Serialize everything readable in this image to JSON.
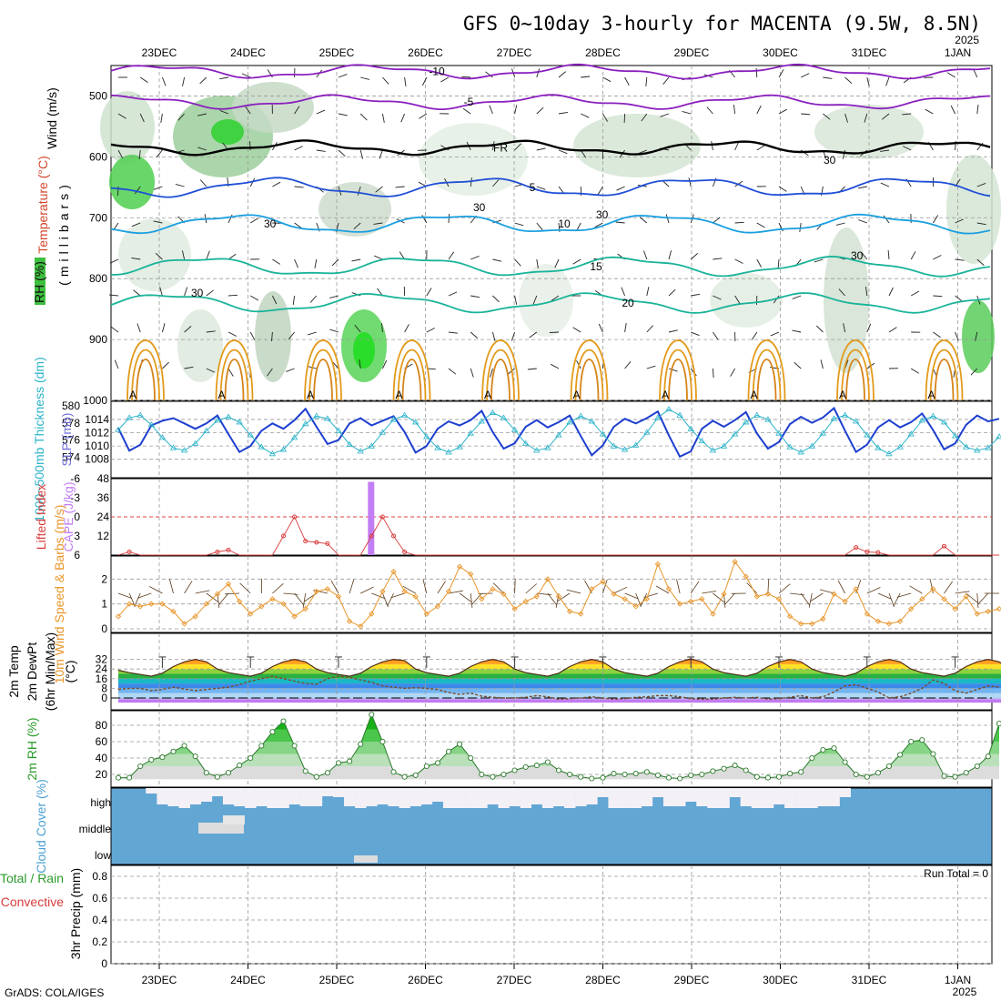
{
  "header": {
    "title": "GFS 0~10day 3-hourly for MACENTA (9.5W, 8.5N)",
    "year_top": "2025",
    "footer": "GrADS: COLA/IGES"
  },
  "axis": {
    "days": [
      "23DEC",
      "24DEC",
      "25DEC",
      "26DEC",
      "27DEC",
      "28DEC",
      "29DEC",
      "30DEC",
      "31DEC",
      "1JAN"
    ],
    "year_bottom": "2025"
  },
  "colors": {
    "wind_purple": "#8a1fbf",
    "freezing": "#000000",
    "t_blue": "#1f4fd6",
    "t_cyan": "#1a9fe0",
    "t_teal": "#19b39a",
    "t_orange": "#e39a1a",
    "slp": "#1e3fcf",
    "thick": "#2bb3c9",
    "cape": "#c27ef5",
    "li": "#d83c3c",
    "wind10": "#e8952a",
    "rh": "#2a9a2a",
    "cloud": "#62a6d4"
  },
  "chart_data": [
    {
      "type": "heatmap",
      "panel": "upper-air",
      "ylabel": "(millibars)",
      "side_labels": [
        "Wind (m/s)",
        "Temperature (°C)",
        "RH (%)"
      ],
      "ylim": [
        1000,
        450
      ],
      "yticks": [
        500,
        600,
        700,
        800,
        900,
        1000
      ],
      "isotherms": [
        {
          "label": "-10",
          "p": 460
        },
        {
          "label": "-5",
          "p": 510
        },
        {
          "label": "FR",
          "p": 585
        },
        {
          "label": "5",
          "p": 650
        },
        {
          "label": "10",
          "p": 710
        },
        {
          "label": "15",
          "p": 780
        },
        {
          "label": "20",
          "p": 840
        }
      ],
      "rh_labels": [
        "30",
        "30",
        "30",
        "30",
        "30",
        "30"
      ]
    },
    {
      "type": "line",
      "panel": "pressure",
      "ylabels": [
        "1000~500mb Thickness (dm)",
        "SLP (mb)"
      ],
      "thickness_ticks": [
        574,
        576,
        578,
        580
      ],
      "slp_ticks": [
        1008,
        1010,
        1012,
        1014
      ],
      "series": [
        {
          "name": "SLP (mb)",
          "values": [
            1012.7,
            1009.3,
            1010.2,
            1013.1,
            1013.8,
            1014.2,
            1013.4,
            1012.6,
            1013.4,
            1014.6,
            1011.8,
            1009.1,
            1010,
            1012.3,
            1013.4,
            1012.6,
            1013.9,
            1015.6,
            1012.9,
            1010.3,
            1010.9,
            1013.4,
            1014.2,
            1013.1,
            1013.8,
            1014.5,
            1012.1,
            1009,
            1010,
            1012.6,
            1013.7,
            1013.1,
            1013.9,
            1015.3,
            1012.1,
            1009.6,
            1010.4,
            1012.9,
            1013.9,
            1012.8,
            1013.6,
            1014.6,
            1011.5,
            1008.6,
            1010.1,
            1012.9,
            1014.1,
            1013.4,
            1014.2,
            1015.2,
            1011.6,
            1008.4,
            1009.2,
            1012.6,
            1013.8,
            1012.9,
            1013.9,
            1015.1,
            1011.9,
            1009.6,
            1010.6,
            1013.3,
            1014.4,
            1013.5,
            1014.3,
            1015.7,
            1012.3,
            1009.1,
            1010.2,
            1012.8,
            1013.9,
            1012.8,
            1013.6,
            1014.9,
            1012.4,
            1009.5,
            1010.4,
            1013.2,
            1014.6,
            1013.7,
            1014.1
          ]
        },
        {
          "name": "1000~500mb Thickness (dm)",
          "values": [
            577.2,
            578.6,
            578.9,
            577.8,
            576.3,
            575.1,
            574.8,
            575.6,
            577.1,
            578.3,
            578.7,
            578.1,
            576.6,
            575.2,
            574.4,
            574.9,
            576.3,
            577.9,
            578.8,
            578.5,
            577.1,
            575.5,
            574.7,
            575.3,
            576.9,
            578.4,
            578.9,
            578.1,
            576.4,
            575.1,
            574.6,
            575.2,
            576.8,
            578.2,
            579.2,
            578.6,
            577.2,
            575.6,
            574.8,
            575.1,
            576.6,
            578.1,
            578.8,
            578.2,
            576.7,
            575.3,
            574.9,
            575.4,
            576.9,
            578.6,
            579.6,
            578.9,
            577.3,
            575.9,
            574.8,
            575.3,
            576.7,
            578.1,
            578.9,
            578.4,
            576.8,
            575.2,
            574.6,
            575.3,
            576.8,
            578.5,
            578.9,
            578.2,
            576.6,
            575.1,
            574.4,
            575.2,
            576.7,
            578.3,
            578.8,
            578.1,
            576.5,
            575.2,
            574.8,
            575.1,
            576.4
          ]
        }
      ]
    },
    {
      "type": "bar",
      "panel": "instability",
      "ylabels": [
        "Lifted Index",
        "CAPE (J/kg)"
      ],
      "li_ticks": [
        "6",
        "3",
        "0",
        "-3",
        "-6"
      ],
      "cape_ticks": [
        12,
        24,
        36,
        48
      ],
      "cape_bars": [
        {
          "i": 23,
          "value": 46
        }
      ],
      "series": [
        {
          "name": "Lifted Index",
          "values": [
            6,
            5.5,
            6,
            6,
            6,
            6,
            6,
            6,
            6,
            5.5,
            5.2,
            6,
            6,
            6,
            6,
            3,
            0,
            3.8,
            4,
            4.2,
            6,
            6,
            6,
            3,
            0,
            3,
            5.5,
            6,
            6,
            6,
            6,
            6,
            6,
            6,
            6,
            6,
            6,
            6,
            6,
            6,
            6,
            6,
            6,
            6,
            6,
            6,
            6,
            6,
            6,
            6,
            6,
            6,
            6,
            6,
            6,
            6,
            6,
            6,
            6,
            6,
            6,
            6,
            6,
            6,
            6,
            6,
            6,
            4.8,
            5.5,
            5.6,
            6,
            6,
            6,
            6,
            6,
            4.6,
            6,
            6,
            6,
            6,
            6
          ]
        }
      ]
    },
    {
      "type": "line",
      "panel": "wind10m",
      "ylabel": "10m Wind Speed & Barbs (m/s)",
      "yticks": [
        0,
        1,
        2
      ],
      "series": [
        {
          "name": "10m Wind Speed",
          "values": [
            0.5,
            1,
            0.9,
            1,
            1,
            0.7,
            0.2,
            0.5,
            1,
            1.4,
            1.8,
            1.1,
            0.6,
            0.9,
            1.2,
            1,
            0.5,
            0.8,
            1.5,
            1.6,
            1.3,
            0.3,
            0.1,
            0.6,
            1.5,
            2.3,
            1.5,
            1.3,
            0.6,
            0.9,
            1.5,
            2.5,
            2.2,
            1.2,
            1.6,
            1.4,
            0.8,
            1.1,
            1.3,
            2,
            1.3,
            0.7,
            0.6,
            1.6,
            1.9,
            1.4,
            1.2,
            0.9,
            1.2,
            2.6,
            1.6,
            1,
            1.1,
            1.2,
            0.6,
            1.4,
            2.7,
            2.1,
            1.3,
            1.4,
            1.2,
            0.5,
            0.2,
            0.2,
            0.4,
            1.4,
            1.1,
            1.6,
            0.6,
            0.3,
            0.2,
            0.3,
            0.8,
            1.2,
            1.6,
            1.2,
            0.8,
            1.3,
            0.6,
            0.7,
            0.8
          ]
        }
      ]
    },
    {
      "type": "area",
      "panel": "temperature",
      "ylabels": [
        "2m Temp",
        "2m DewPt",
        "(6hr Min/Max)",
        "(°C)"
      ],
      "yticks": [
        0,
        8,
        16,
        24,
        32
      ],
      "series": [
        {
          "name": "2m Temp",
          "values": [
            23,
            21,
            19.5,
            18,
            20.5,
            26,
            30,
            32,
            30,
            24,
            21,
            19.5,
            18,
            20.5,
            26,
            30,
            32,
            30,
            24,
            21,
            19.5,
            18,
            20.5,
            26,
            30,
            32,
            31,
            24,
            21,
            19.5,
            18,
            20.5,
            26,
            30,
            32,
            30,
            24,
            21,
            19.5,
            18,
            20.5,
            26,
            30,
            32,
            30,
            24,
            21,
            19.5,
            18,
            20.5,
            26,
            30,
            32.5,
            30,
            24,
            21,
            19.5,
            18,
            20.5,
            26,
            30,
            32,
            30,
            24,
            21,
            19.5,
            18,
            20.5,
            26,
            30,
            32,
            30,
            24,
            21,
            19.5,
            18,
            20.5,
            26,
            30,
            32,
            30,
            24
          ]
        },
        {
          "name": "2m DewPt",
          "values": [
            7,
            8,
            8,
            6,
            7,
            9,
            7.5,
            6,
            7,
            8,
            9,
            11,
            14,
            16,
            18,
            16,
            14,
            12,
            11.5,
            16,
            18,
            17,
            15,
            13,
            10,
            9,
            8,
            8.5,
            8,
            7,
            4.5,
            3,
            4,
            1.5,
            0.5,
            0,
            0,
            0.5,
            2,
            1,
            -1,
            -0.5,
            0,
            1,
            0,
            -1,
            -0.5,
            0.5,
            1,
            2,
            2,
            1,
            -0.5,
            -1,
            -1,
            0,
            0.5,
            0,
            0.5,
            -1,
            -0.5,
            0.5,
            2,
            0,
            1,
            5,
            10,
            11,
            8,
            5,
            0,
            1,
            4,
            8,
            15,
            12,
            6,
            4,
            7,
            10,
            9
          ]
        }
      ]
    },
    {
      "type": "area",
      "panel": "rh",
      "ylabel": "2m RH (%)",
      "yticks": [
        20,
        40,
        60,
        80
      ],
      "series": [
        {
          "name": "2m RH",
          "values": [
            16,
            16,
            30,
            38,
            41,
            48,
            55,
            42,
            22,
            17,
            22,
            31,
            40,
            55,
            72,
            85,
            55,
            24,
            17,
            22,
            34,
            36,
            57,
            93,
            60,
            23,
            17,
            19,
            30,
            34,
            48,
            57,
            40,
            20,
            17,
            20,
            25,
            29,
            31,
            35,
            25,
            20,
            17,
            15,
            16,
            21,
            20,
            21,
            23,
            19,
            16,
            15,
            19,
            20,
            24,
            27,
            31,
            25,
            17,
            16,
            17,
            21,
            23,
            40,
            50,
            52,
            35,
            20,
            17,
            22,
            30,
            44,
            60,
            62,
            45,
            18,
            17,
            22,
            30,
            42,
            82
          ]
        }
      ]
    },
    {
      "type": "bar",
      "panel": "cloud",
      "ylabel": "Cloud Cover (%)",
      "levels": [
        "high",
        "middle",
        "low"
      ],
      "series": [
        {
          "name": "high",
          "values": [
            0,
            0,
            0,
            6,
            18,
            20,
            22,
            18,
            15,
            9,
            18,
            20,
            22,
            20,
            22,
            22,
            18,
            20,
            20,
            9,
            10,
            20,
            22,
            20,
            18,
            20,
            22,
            20,
            18,
            15,
            22,
            22,
            22,
            22,
            18,
            22,
            20,
            22,
            18,
            22,
            20,
            22,
            20,
            18,
            10,
            22,
            22,
            22,
            20,
            10,
            20,
            20,
            15,
            20,
            22,
            22,
            10,
            20,
            22,
            22,
            18,
            22,
            22,
            22,
            20,
            20,
            10,
            0,
            0,
            0,
            0,
            0,
            0,
            0,
            0,
            0,
            0,
            0,
            0,
            0,
            0
          ]
        },
        {
          "name": "middle",
          "values": [
            0,
            0,
            0,
            0,
            0,
            0,
            0,
            0,
            0,
            0,
            0,
            0,
            0,
            0,
            0,
            0,
            0,
            0,
            0,
            0,
            0,
            0,
            0,
            0,
            0,
            0,
            0,
            0,
            0,
            0,
            0,
            0,
            0,
            0,
            0,
            0,
            0,
            0,
            0,
            0,
            0,
            0,
            0,
            0,
            0,
            0,
            0,
            0,
            0,
            0,
            0,
            0,
            0,
            0,
            0,
            0,
            0,
            0,
            0,
            0,
            0,
            0,
            0,
            0,
            0,
            0,
            0,
            0,
            0,
            0,
            0,
            0,
            0,
            0,
            0,
            0,
            0,
            0,
            0,
            0,
            0
          ]
        },
        {
          "name": "low",
          "values": [
            0,
            0,
            0,
            0,
            0,
            0,
            0,
            0,
            0,
            0,
            0,
            0,
            0,
            0,
            0,
            0,
            0,
            0,
            0,
            0,
            0,
            0,
            0,
            0,
            0,
            0,
            0,
            0,
            0,
            0,
            0,
            0,
            0,
            0,
            0,
            0,
            0,
            0,
            0,
            0,
            0,
            0,
            0,
            0,
            0,
            0,
            0,
            0,
            0,
            0,
            0,
            0,
            0,
            0,
            0,
            0,
            0,
            0,
            0,
            0,
            0,
            0,
            0,
            0,
            0,
            0,
            0,
            0,
            0,
            0,
            0,
            0,
            0,
            0,
            0,
            0,
            0,
            0,
            0,
            0,
            0
          ]
        }
      ]
    },
    {
      "type": "bar",
      "panel": "precip",
      "ylabels": [
        "Total / Rain",
        "Convective",
        "3hr Precip (mm)"
      ],
      "yticks": [
        "0",
        "0.2",
        "0.4",
        "0.6",
        "0.8"
      ],
      "annotation": "Run Total = 0",
      "values": [
        0,
        0,
        0,
        0,
        0,
        0,
        0,
        0,
        0,
        0,
        0,
        0,
        0,
        0,
        0,
        0,
        0,
        0,
        0,
        0,
        0,
        0,
        0,
        0,
        0,
        0,
        0,
        0,
        0,
        0,
        0,
        0,
        0,
        0,
        0,
        0,
        0,
        0,
        0,
        0,
        0,
        0,
        0,
        0,
        0,
        0,
        0,
        0,
        0,
        0,
        0,
        0,
        0,
        0,
        0,
        0,
        0,
        0,
        0,
        0,
        0,
        0,
        0,
        0,
        0,
        0,
        0,
        0,
        0,
        0,
        0,
        0,
        0,
        0,
        0,
        0,
        0,
        0,
        0,
        0,
        0
      ]
    }
  ]
}
